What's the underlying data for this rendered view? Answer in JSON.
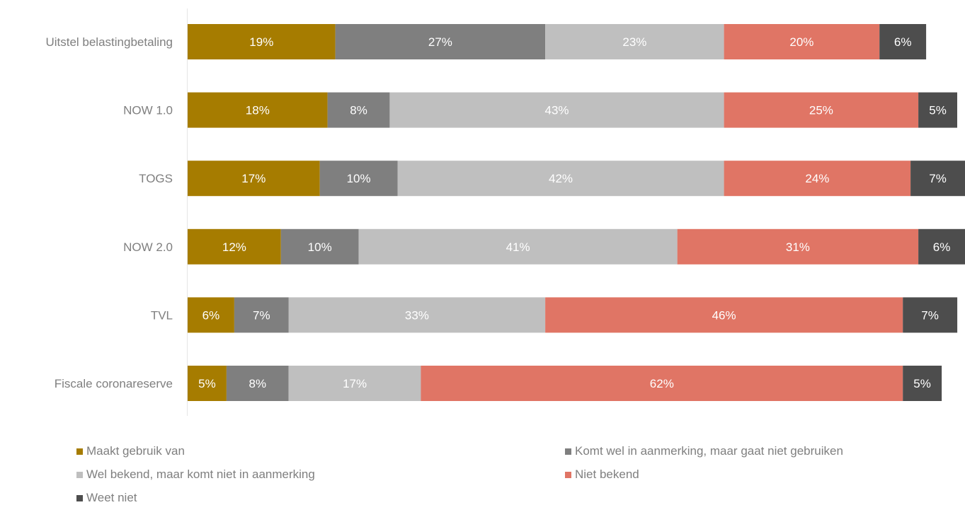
{
  "chart_data": {
    "type": "bar",
    "orientation": "horizontal",
    "stacked": true,
    "title": "",
    "xlabel": "",
    "ylabel": "",
    "xlim": [
      0,
      100
    ],
    "grid": false,
    "legend_position": "bottom",
    "categories": [
      "Uitstel belastingbetaling",
      "NOW 1.0",
      "TOGS",
      "NOW 2.0",
      "TVL",
      "Fiscale coronareserve"
    ],
    "series": [
      {
        "name": "Maakt gebruik van",
        "color": "#a67c00",
        "values": [
          19,
          18,
          17,
          12,
          6,
          5
        ],
        "labels": [
          "19%",
          "18%",
          "17%",
          "12%",
          "6%",
          "5%"
        ]
      },
      {
        "name": "Komt wel in aanmerking, maar gaat niet gebruiken",
        "color": "#7f7f7f",
        "values": [
          27,
          8,
          10,
          10,
          7,
          8
        ],
        "labels": [
          "27%",
          "8%",
          "10%",
          "10%",
          "7%",
          "8%"
        ]
      },
      {
        "name": "Wel bekend, maar komt niet in aanmerking",
        "color": "#bfbfbf",
        "values": [
          23,
          43,
          42,
          41,
          33,
          17
        ],
        "labels": [
          "23%",
          "43%",
          "42%",
          "41%",
          "33%",
          "17%"
        ]
      },
      {
        "name": "Niet bekend",
        "color": "#e07565",
        "values": [
          20,
          25,
          24,
          31,
          46,
          62
        ],
        "labels": [
          "20%",
          "25%",
          "24%",
          "31%",
          "46%",
          "62%"
        ]
      },
      {
        "name": "Weet niet",
        "color": "#4d4d4d",
        "values": [
          6,
          5,
          7,
          6,
          7,
          5
        ],
        "labels": [
          "6%",
          "5%",
          "7%",
          "6%",
          "7%",
          "5%"
        ]
      }
    ]
  }
}
